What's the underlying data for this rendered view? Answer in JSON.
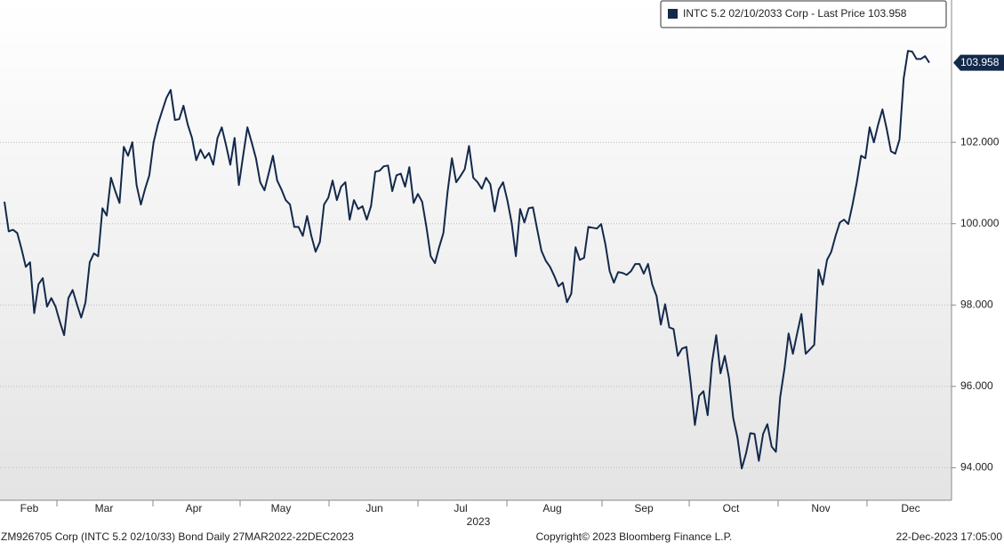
{
  "chart_data": {
    "type": "line",
    "series": [
      {
        "name": "INTC 5.2 02/10/2033 Corp - Last Price 103.958",
        "color": "#13294b",
        "values": [
          100.54,
          99.81,
          99.85,
          99.77,
          99.38,
          98.94,
          99.05,
          97.8,
          98.51,
          98.66,
          97.96,
          98.17,
          97.96,
          97.59,
          97.26,
          98.17,
          98.37,
          98.02,
          97.69,
          98.06,
          99.05,
          99.27,
          99.2,
          100.38,
          100.2,
          101.13,
          100.8,
          100.51,
          101.89,
          101.67,
          102.0,
          100.95,
          100.47,
          100.86,
          101.19,
          102.0,
          102.44,
          102.77,
          103.09,
          103.29,
          102.55,
          102.57,
          102.9,
          102.44,
          102.11,
          101.56,
          101.82,
          101.61,
          101.74,
          101.45,
          102.11,
          102.37,
          101.93,
          101.45,
          102.11,
          100.95,
          101.67,
          102.37,
          102.0,
          101.61,
          101.02,
          100.82,
          101.23,
          101.67,
          101.06,
          100.84,
          100.58,
          100.47,
          99.92,
          99.92,
          99.7,
          100.19,
          99.7,
          99.31,
          99.55,
          100.47,
          100.64,
          101.06,
          100.58,
          100.91,
          101.02,
          100.1,
          100.58,
          100.36,
          100.43,
          100.1,
          100.43,
          101.28,
          101.3,
          101.41,
          101.43,
          100.8,
          101.19,
          101.23,
          100.91,
          101.39,
          100.51,
          100.73,
          100.54,
          99.92,
          99.2,
          99.03,
          99.42,
          99.77,
          100.8,
          101.61,
          101.02,
          101.17,
          101.34,
          101.91,
          101.13,
          101.02,
          100.86,
          101.13,
          100.97,
          100.3,
          100.84,
          101.02,
          100.58,
          100.03,
          99.2,
          100.36,
          100.03,
          100.38,
          100.4,
          99.86,
          99.33,
          99.09,
          98.94,
          98.72,
          98.46,
          98.55,
          98.07,
          98.28,
          99.42,
          99.11,
          99.16,
          99.92,
          99.9,
          99.88,
          99.99,
          99.49,
          98.83,
          98.55,
          98.81,
          98.79,
          98.74,
          98.83,
          99.01,
          99.01,
          98.77,
          99.01,
          98.5,
          98.22,
          97.52,
          98.02,
          97.45,
          97.41,
          96.75,
          96.93,
          96.97,
          96.1,
          95.05,
          95.77,
          95.88,
          95.29,
          96.58,
          97.26,
          96.32,
          96.75,
          96.21,
          95.22,
          94.74,
          93.98,
          94.35,
          94.85,
          94.83,
          94.17,
          94.83,
          95.07,
          94.52,
          94.39,
          95.73,
          96.43,
          97.3,
          96.8,
          97.3,
          97.78,
          96.8,
          96.91,
          97.02,
          98.87,
          98.5,
          99.11,
          99.31,
          99.7,
          100.03,
          100.1,
          99.99,
          100.47,
          101.02,
          101.67,
          101.61,
          102.37,
          102.0,
          102.44,
          102.81,
          102.33,
          101.78,
          101.72,
          102.07,
          103.57,
          104.25,
          104.23,
          104.05,
          104.05,
          104.12,
          103.958
        ]
      }
    ],
    "last_price": 103.958,
    "months": [
      "Feb",
      "Mar",
      "Apr",
      "May",
      "Jun",
      "Jul",
      "Aug",
      "Sep",
      "Oct",
      "Nov",
      "Dec"
    ],
    "year_label": "2023",
    "ylim": [
      93.2,
      105.5
    ],
    "yticks": [
      {
        "value": 94,
        "label": "94.000"
      },
      {
        "value": 96,
        "label": "96.000"
      },
      {
        "value": 98,
        "label": "98.000"
      },
      {
        "value": 100,
        "label": "100.000"
      },
      {
        "value": 102,
        "label": "102.000"
      }
    ],
    "grid": true,
    "footer": {
      "left": "ZM926705 Corp (INTC 5.2 02/10/33) Bond  Daily 27MAR2022-22DEC2023",
      "center": "Copyright© 2023 Bloomberg Finance L.P.",
      "right": "22-Dec-2023 17:05:00"
    }
  }
}
